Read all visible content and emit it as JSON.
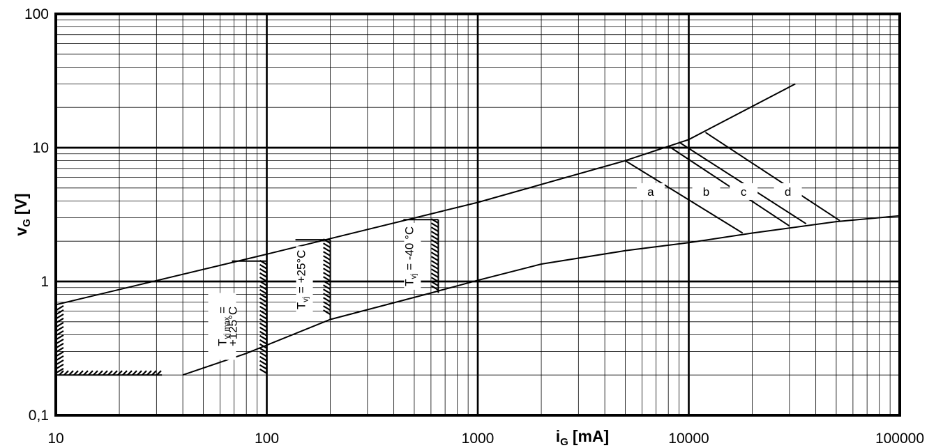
{
  "chart_data": {
    "type": "line",
    "x_scale": "log",
    "y_scale": "log",
    "xlim": [
      10,
      100000
    ],
    "ylim": [
      0.1,
      100
    ],
    "grid": true,
    "x_ticks": [
      10,
      100,
      1000,
      10000,
      100000
    ],
    "x_tick_labels": [
      "10",
      "100",
      "1000",
      "10000",
      "100000"
    ],
    "y_ticks": [
      0.1,
      1,
      10,
      100
    ],
    "y_tick_labels": [
      "0,1",
      "1",
      "10",
      "100"
    ],
    "xlabel_main": "i",
    "xlabel_sub": "G",
    "xlabel_unit": "[mA]",
    "ylabel_main": "v",
    "ylabel_sub": "G",
    "ylabel_unit": "[V]",
    "series": [
      {
        "points": [
          [
            10,
            0.67
          ],
          [
            100,
            1.6
          ],
          [
            1000,
            3.9
          ],
          [
            5000,
            8.0
          ],
          [
            10000,
            11.5
          ],
          [
            32000,
            30
          ]
        ]
      },
      {
        "points": [
          [
            40,
            0.2
          ],
          [
            80,
            0.29
          ],
          [
            200,
            0.52
          ],
          [
            600,
            0.82
          ],
          [
            1000,
            1.02
          ],
          [
            2000,
            1.35
          ],
          [
            5000,
            1.7
          ],
          [
            10000,
            1.95
          ],
          [
            20000,
            2.3
          ],
          [
            50000,
            2.8
          ],
          [
            100000,
            3.1
          ]
        ]
      },
      {
        "points": [
          [
            5000,
            8.0
          ],
          [
            18000,
            2.3
          ]
        ]
      },
      {
        "points": [
          [
            8000,
            10.3
          ],
          [
            30000,
            2.6
          ]
        ]
      },
      {
        "points": [
          [
            9000,
            11.0
          ],
          [
            36000,
            2.7
          ]
        ]
      },
      {
        "points": [
          [
            12000,
            13.0
          ],
          [
            52000,
            2.85
          ]
        ]
      }
    ],
    "regions": [
      {
        "label": "T",
        "label_sub": "vj max",
        "label_rest": " =",
        "label_line2": "+125°C",
        "x_max": 100,
        "y_max": 1.42,
        "y_min": 0.2,
        "x_min": 10
      },
      {
        "label": "T",
        "label_sub": "vj",
        "label_rest": " = +25°C",
        "label_line2": "",
        "x_max": 200,
        "y_max": 2.05,
        "y_min": 0.52
      },
      {
        "label": "T",
        "label_sub": "vj",
        "label_rest": " = -40 °C",
        "label_line2": "",
        "x_max": 650,
        "y_max": 2.9,
        "y_min": 0.82
      }
    ],
    "curve_labels": [
      {
        "text": "a",
        "x": 6600,
        "y": 4.7
      },
      {
        "text": "b",
        "x": 12100,
        "y": 4.7
      },
      {
        "text": "c",
        "x": 18200,
        "y": 4.7
      },
      {
        "text": "d",
        "x": 29500,
        "y": 4.7
      }
    ]
  }
}
